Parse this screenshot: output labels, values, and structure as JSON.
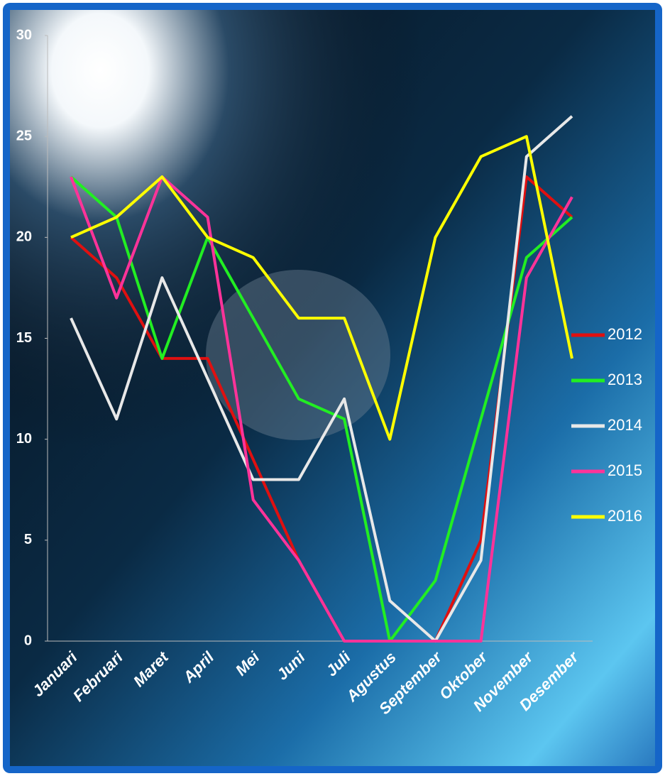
{
  "chart_data": {
    "type": "line",
    "categories": [
      "Januari",
      "Februari",
      "Maret",
      "April",
      "Mei",
      "Juni",
      "Juli",
      "Agustus",
      "September",
      "Oktober",
      "November",
      "Desember"
    ],
    "series": [
      {
        "name": "2012",
        "color": "#e01010",
        "values": [
          20,
          18,
          14,
          14,
          9,
          4,
          0,
          0,
          0,
          5,
          23,
          21
        ]
      },
      {
        "name": "2013",
        "color": "#22ee22",
        "values": [
          23,
          21,
          14,
          20,
          16,
          12,
          11,
          0,
          3,
          11,
          19,
          21
        ]
      },
      {
        "name": "2014",
        "color": "#e8e8e8",
        "values": [
          16,
          11,
          18,
          13,
          8,
          8,
          12,
          2,
          0,
          4,
          24,
          26
        ]
      },
      {
        "name": "2015",
        "color": "#ff3399",
        "values": [
          23,
          17,
          23,
          21,
          7,
          4,
          0,
          0,
          0,
          0,
          18,
          22
        ]
      },
      {
        "name": "2016",
        "color": "#ffff00",
        "values": [
          20,
          21,
          23,
          20,
          19,
          16,
          16,
          10,
          20,
          24,
          25,
          14
        ]
      }
    ],
    "ylim": [
      0,
      30
    ],
    "yticks": [
      0,
      5,
      10,
      15,
      20,
      25,
      30
    ],
    "grid": false,
    "legend": "right"
  }
}
